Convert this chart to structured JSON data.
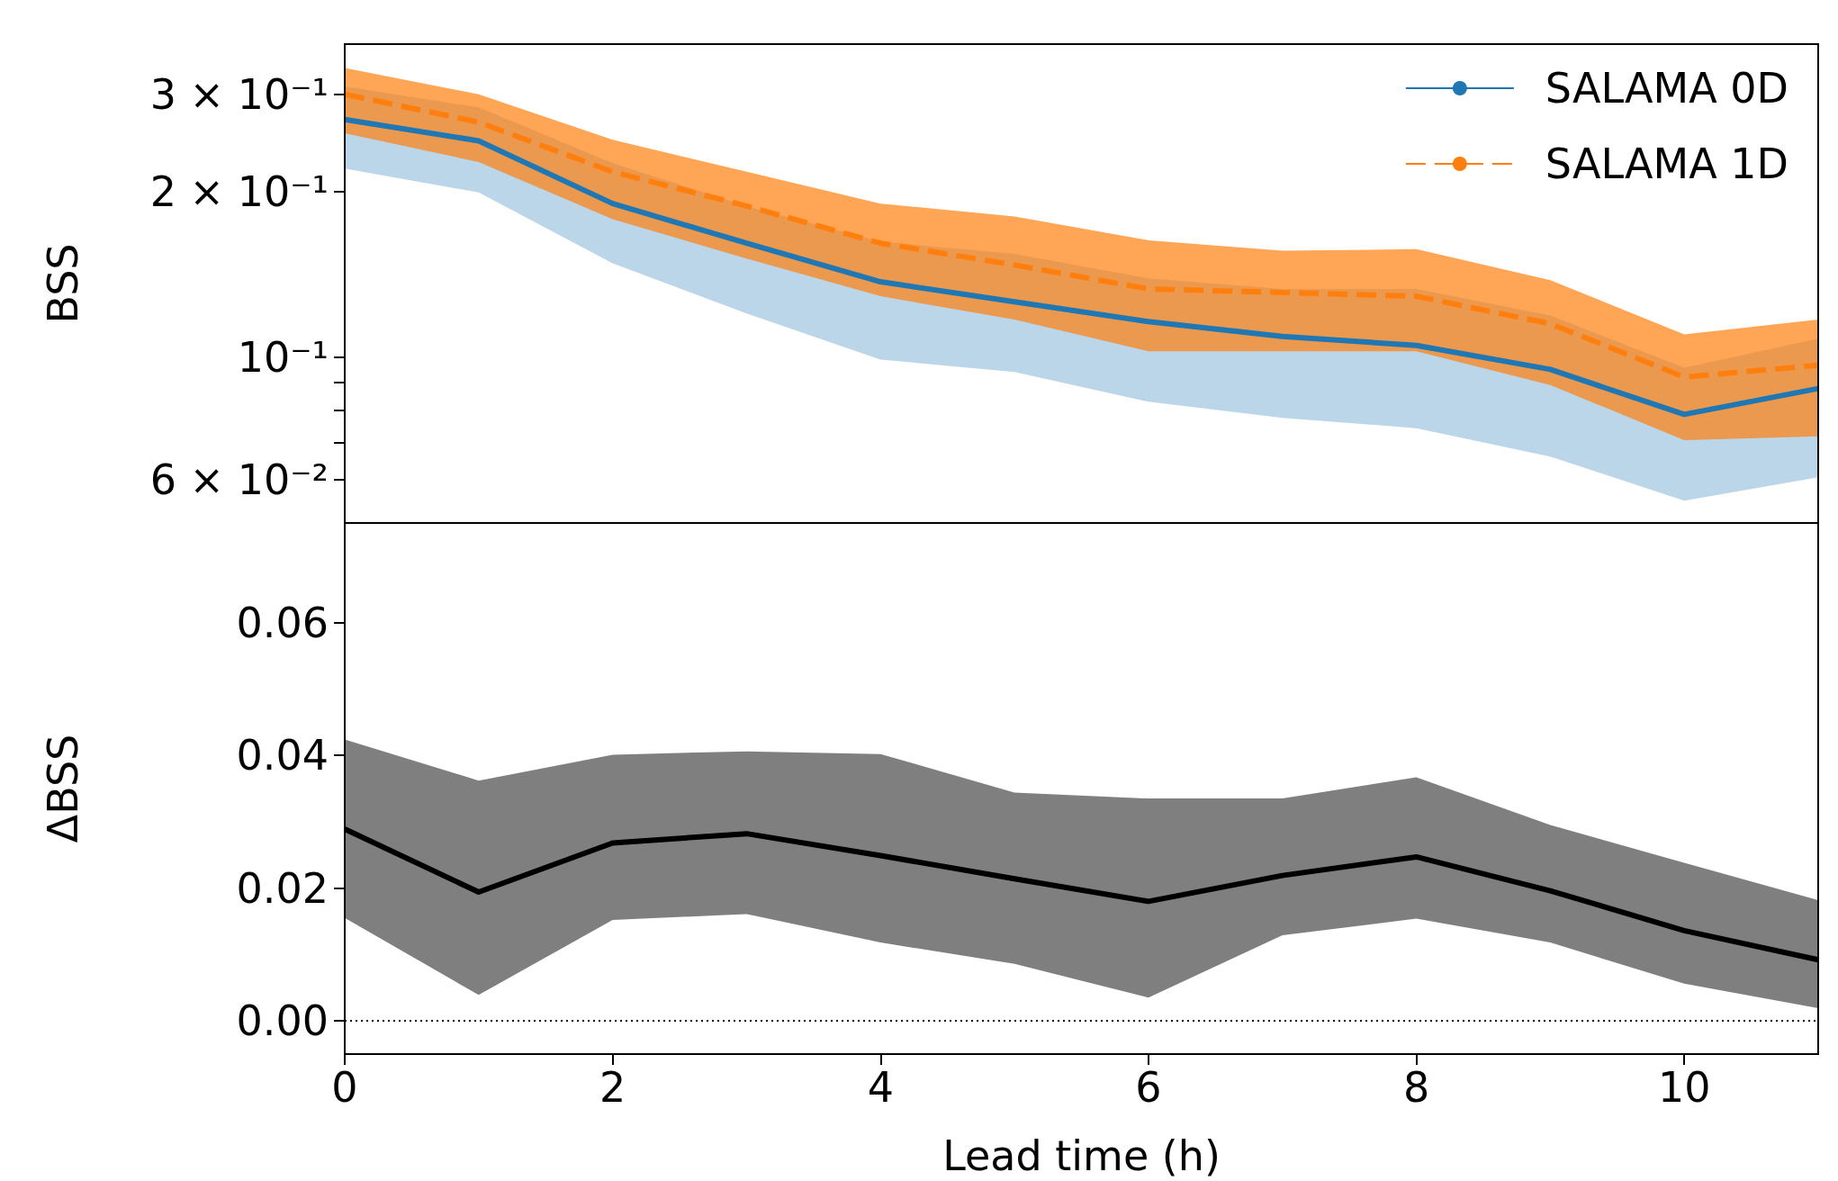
{
  "chart_data": [
    {
      "type": "line",
      "ylabel": "BSS",
      "x": [
        0,
        1,
        2,
        3,
        4,
        5,
        6,
        7,
        8,
        9,
        10,
        11
      ],
      "log": "y",
      "xlim": [
        0,
        11
      ],
      "xticks": [
        0,
        2,
        4,
        6,
        8,
        10
      ],
      "ylim": [
        0.05,
        0.37
      ],
      "yticks": [
        {
          "value": 0.06,
          "label": "6 × 10⁻²"
        },
        {
          "value": 0.07,
          "label": null
        },
        {
          "value": 0.08,
          "label": null
        },
        {
          "value": 0.09,
          "label": null
        },
        {
          "value": 0.1,
          "label": "10⁻¹"
        },
        {
          "value": 0.2,
          "label": "2 × 10⁻¹"
        },
        {
          "value": 0.3,
          "label": "3 × 10⁻¹"
        }
      ],
      "tick_labels": "y",
      "grid": false,
      "legend": "top right",
      "marker": "none",
      "series": [
        {
          "name": "SALAMA 0D",
          "color": "#1f77b4",
          "line_style": "solid",
          "values": [
            0.27,
            0.247,
            0.19,
            0.161,
            0.137,
            0.126,
            0.116,
            0.109,
            0.105,
            0.095,
            0.0787,
            0.0877
          ],
          "lower": [
            0.22,
            0.199,
            0.148,
            0.12,
            0.099,
            0.094,
            0.083,
            0.0776,
            0.0743,
            0.066,
            0.0549,
            0.0605
          ],
          "upper": [
            0.31,
            0.284,
            0.225,
            0.188,
            0.162,
            0.154,
            0.139,
            0.133,
            0.133,
            0.119,
            0.0957,
            0.108
          ]
        },
        {
          "name": "SALAMA 1D",
          "color": "#ff7f0e",
          "line_style": "dashed",
          "values": [
            0.3,
            0.267,
            0.217,
            0.188,
            0.161,
            0.147,
            0.133,
            0.131,
            0.129,
            0.115,
            0.092,
            0.0967
          ],
          "lower": [
            0.255,
            0.226,
            0.178,
            0.151,
            0.129,
            0.117,
            0.1025,
            0.1025,
            0.1025,
            0.089,
            0.0707,
            0.0718
          ],
          "upper": [
            0.335,
            0.3,
            0.248,
            0.217,
            0.19,
            0.18,
            0.163,
            0.156,
            0.157,
            0.138,
            0.11,
            0.117
          ]
        }
      ]
    },
    {
      "type": "line",
      "ylabel": "ΔBSS",
      "xlabel": "Lead time (h)",
      "x": [
        0,
        1,
        2,
        3,
        4,
        5,
        6,
        7,
        8,
        9,
        10,
        11
      ],
      "xlim": [
        0,
        11
      ],
      "xticks": [
        0,
        2,
        4,
        6,
        8,
        10
      ],
      "ylim": [
        -0.005,
        0.075
      ],
      "yticks": [
        {
          "value": 0,
          "label": "0.00"
        },
        {
          "value": 0.02,
          "label": "0.02"
        },
        {
          "value": 0.04,
          "label": "0.04"
        },
        {
          "value": 0.06,
          "label": "0.06"
        }
      ],
      "grid": false,
      "legend": false,
      "marker": "none",
      "ref_lines": [
        {
          "axis": "y",
          "value": 0,
          "color": "#000000",
          "line_style": "dotted"
        }
      ],
      "series": [
        {
          "color": "#000000",
          "line_style": "solid",
          "values": [
            0.0289,
            0.0194,
            0.0268,
            0.0282,
            0.0249,
            0.0214,
            0.018,
            0.0219,
            0.0247,
            0.0196,
            0.0136,
            0.0092
          ],
          "lower": [
            0.0155,
            0.0039,
            0.0152,
            0.0161,
            0.0118,
            0.0086,
            0.0035,
            0.0129,
            0.0154,
            0.0118,
            0.0056,
            0.0019
          ],
          "upper": [
            0.0424,
            0.0362,
            0.0401,
            0.0406,
            0.0402,
            0.0344,
            0.0335,
            0.0335,
            0.0367,
            0.0295,
            0.0238,
            0.0182
          ]
        }
      ]
    }
  ]
}
